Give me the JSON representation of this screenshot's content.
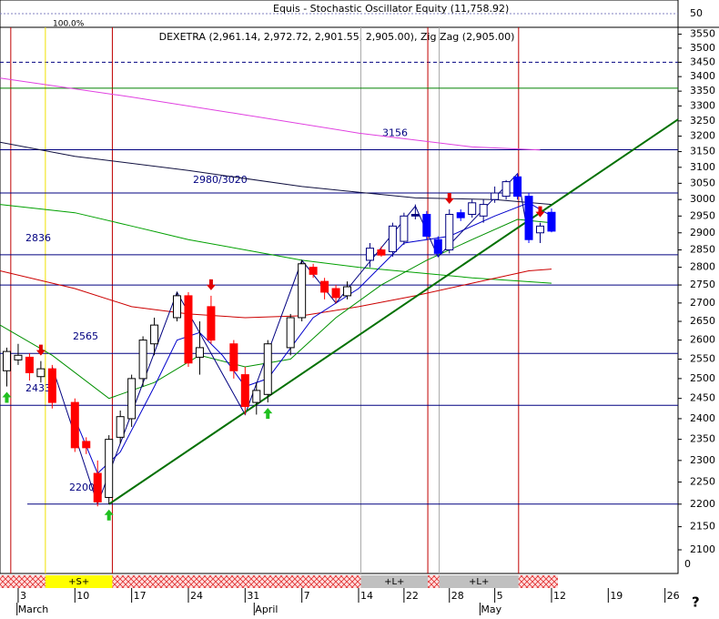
{
  "chart_data": {
    "type": "candlestick",
    "title": "DEXETRA (2,961.14, 2,972.72, 2,901.55, 2,905.00), Zig Zag (2,905.00)",
    "top_panel_title": "Equis - Stochastic Oscillator Equity (11,758.92)",
    "top_panel_pct": "100.0%",
    "top_panel_tick": 50,
    "log_y": true,
    "ylim": [
      2050,
      3575
    ],
    "yticks": [
      3550,
      3500,
      3450,
      3400,
      3350,
      3300,
      3250,
      3200,
      3150,
      3100,
      3050,
      3000,
      2950,
      2900,
      2850,
      2800,
      2750,
      2700,
      2650,
      2600,
      2550,
      2500,
      2450,
      2400,
      2350,
      2300,
      2250,
      2200,
      2150,
      2100
    ],
    "bottom_label": "0",
    "xlim": [
      -1.6,
      58.15
    ],
    "xticks": [
      {
        "value": 0,
        "label": "3"
      },
      {
        "value": 5,
        "label": "10"
      },
      {
        "value": 10,
        "label": "17"
      },
      {
        "value": 15,
        "label": "24"
      },
      {
        "value": 20,
        "label": "31"
      },
      {
        "value": 25,
        "label": "7"
      },
      {
        "value": 30,
        "label": "14"
      },
      {
        "value": 34,
        "label": "22"
      },
      {
        "value": 38,
        "label": "28"
      },
      {
        "value": 42,
        "label": "5"
      },
      {
        "value": 47,
        "label": "12"
      },
      {
        "value": 52,
        "label": "19"
      },
      {
        "value": 57,
        "label": "26"
      }
    ],
    "month_ticks": [
      {
        "value": -0.1,
        "label": "March"
      },
      {
        "value": 20.8,
        "label": "April"
      },
      {
        "value": 40.7,
        "label": "May"
      }
    ],
    "x": [
      -1,
      0,
      1,
      2,
      3,
      5,
      6,
      7,
      8,
      9,
      10,
      11,
      12,
      14,
      15,
      16,
      17,
      19,
      20,
      21,
      22,
      24,
      25,
      26,
      27,
      28,
      29,
      31,
      32,
      33,
      34,
      35,
      36,
      37,
      38,
      39,
      40,
      41,
      42,
      43,
      44,
      45,
      46,
      47
    ],
    "open": [
      2520,
      2548,
      2555,
      2505,
      2525,
      2440,
      2345,
      2270,
      2215,
      2355,
      2400,
      2500,
      2590,
      2660,
      2720,
      2555,
      2690,
      2590,
      2510,
      2440,
      2460,
      2580,
      2660,
      2800,
      2760,
      2740,
      2720,
      2820,
      2850,
      2845,
      2875,
      2955,
      2955,
      2880,
      2850,
      2960,
      2955,
      2950,
      3000,
      3010,
      3070,
      3010,
      2900,
      2961.14
    ],
    "high": [
      2580,
      2590,
      2565,
      2545,
      2535,
      2450,
      2355,
      2300,
      2360,
      2420,
      2510,
      2610,
      2660,
      2730,
      2730,
      2650,
      2720,
      2600,
      2530,
      2490,
      2600,
      2670,
      2820,
      2810,
      2770,
      2750,
      2760,
      2870,
      2860,
      2930,
      2960,
      2985,
      2965,
      2890,
      2970,
      2970,
      3000,
      3000,
      3040,
      3060,
      3080,
      3020,
      2930,
      2972.72
    ],
    "low": [
      2480,
      2535,
      2495,
      2490,
      2425,
      2320,
      2315,
      2195,
      2200,
      2340,
      2380,
      2480,
      2560,
      2650,
      2530,
      2510,
      2590,
      2500,
      2410,
      2410,
      2440,
      2560,
      2650,
      2770,
      2710,
      2700,
      2710,
      2800,
      2830,
      2830,
      2865,
      2940,
      2880,
      2830,
      2840,
      2935,
      2945,
      2930,
      2990,
      3000,
      3000,
      2870,
      2870,
      2901.55
    ],
    "close": [
      2570,
      2560,
      2515,
      2525,
      2440,
      2330,
      2330,
      2205,
      2350,
      2405,
      2500,
      2600,
      2640,
      2720,
      2540,
      2580,
      2600,
      2520,
      2430,
      2470,
      2590,
      2660,
      2810,
      2780,
      2730,
      2715,
      2745,
      2855,
      2835,
      2920,
      2950,
      2950,
      2890,
      2840,
      2955,
      2945,
      2990,
      2985,
      3020,
      3055,
      3010,
      2880,
      2920,
      2905
    ],
    "colors": [
      "#000000",
      "#000000",
      "#ff0000",
      "#000000",
      "#ff0000",
      "#ff0000",
      "#ff0000",
      "#ff0000",
      "#000000",
      "#000000",
      "#000000",
      "#000000",
      "#000000",
      "#000000",
      "#ff0000",
      "#000000",
      "#ff0000",
      "#ff0000",
      "#ff0000",
      "#000000",
      "#000000",
      "#000000",
      "#000000",
      "#ff0000",
      "#ff0000",
      "#ff0000",
      "#000000",
      "#000080",
      "#ff0000",
      "#000080",
      "#000080",
      "#000080",
      "#0000ff",
      "#0000ff",
      "#000080",
      "#0000ff",
      "#000080",
      "#000080",
      "#000080",
      "#000080",
      "#0000ff",
      "#0000ff",
      "#000080",
      "#0000ff"
    ],
    "series": [
      {
        "color": "#e040e0",
        "x": [
          -1.6,
          10,
          20,
          30,
          40,
          46
        ],
        "values": [
          3395,
          3330,
          3270,
          3210,
          3165,
          3155
        ]
      },
      {
        "color": "#101040",
        "x": [
          -1.6,
          5,
          15,
          25,
          35,
          42,
          47
        ],
        "values": [
          3180,
          3135,
          3090,
          3040,
          3005,
          3000,
          2985
        ]
      },
      {
        "color": "#00a000",
        "x": [
          -1.6,
          5,
          10,
          15,
          20,
          25,
          30,
          40,
          47
        ],
        "values": [
          2985,
          2960,
          2920,
          2880,
          2850,
          2820,
          2800,
          2770,
          2755
        ]
      },
      {
        "color": "#cc0000",
        "x": [
          -1.6,
          5,
          10,
          15,
          20,
          25,
          30,
          35,
          40,
          45,
          47
        ],
        "values": [
          2790,
          2740,
          2690,
          2670,
          2660,
          2665,
          2690,
          2720,
          2755,
          2790,
          2795
        ]
      },
      {
        "color": "#009000",
        "x": [
          -1.6,
          3,
          8,
          12,
          16,
          20,
          24,
          28,
          32,
          36,
          40,
          44,
          47
        ],
        "values": [
          2640,
          2560,
          2450,
          2490,
          2560,
          2530,
          2550,
          2660,
          2750,
          2820,
          2880,
          2940,
          2930
        ]
      },
      {
        "color": "#0000cc",
        "x": [
          5,
          7,
          9,
          12,
          14,
          16,
          18,
          20,
          22,
          26,
          30,
          34,
          38,
          42,
          45,
          47
        ],
        "values": [
          2400,
          2270,
          2320,
          2480,
          2600,
          2620,
          2560,
          2480,
          2500,
          2660,
          2740,
          2870,
          2890,
          2950,
          2990,
          2950
        ]
      },
      {
        "color": "#000080",
        "x": [
          3,
          7,
          14,
          20,
          25,
          28,
          35,
          37,
          44,
          45
        ],
        "values": [
          2530,
          2200,
          2730,
          2410,
          2820,
          2700,
          2980,
          2830,
          3080,
          2880
        ]
      },
      {
        "color": "#007000",
        "x": [
          8,
          58.15
        ],
        "values": [
          2200,
          3255
        ]
      }
    ],
    "labeled_levels": [
      3156,
      2836,
      2565,
      2433,
      2200
    ],
    "plain_levels": [
      3360,
      3020,
      2750
    ],
    "level_note": "2980/3020",
    "dashed_level": 3450,
    "vlines": [
      {
        "x": -0.65,
        "color": "#c00000"
      },
      {
        "x": 2.4,
        "color": "#f0e000"
      },
      {
        "x": 8.3,
        "color": "#c00000"
      },
      {
        "x": 30.2,
        "color": "#aaaaaa"
      },
      {
        "x": 36.1,
        "color": "#c00000"
      },
      {
        "x": 37.1,
        "color": "#aaaaaa"
      },
      {
        "x": 44.1,
        "color": "#c00000"
      }
    ],
    "sell_signals": [
      2,
      17,
      38,
      46
    ],
    "buy_signals": [
      -1,
      8,
      22
    ],
    "bands": [
      {
        "from": 2.4,
        "to": 8.3,
        "label": "+S+",
        "color": "#ffff00"
      },
      {
        "from": 30.2,
        "to": 36.1,
        "label": "+L+",
        "color": "#c0c0c0"
      },
      {
        "from": 37.1,
        "to": 44.1,
        "label": "+L+",
        "color": "#c0c0c0"
      }
    ],
    "help": "?"
  }
}
